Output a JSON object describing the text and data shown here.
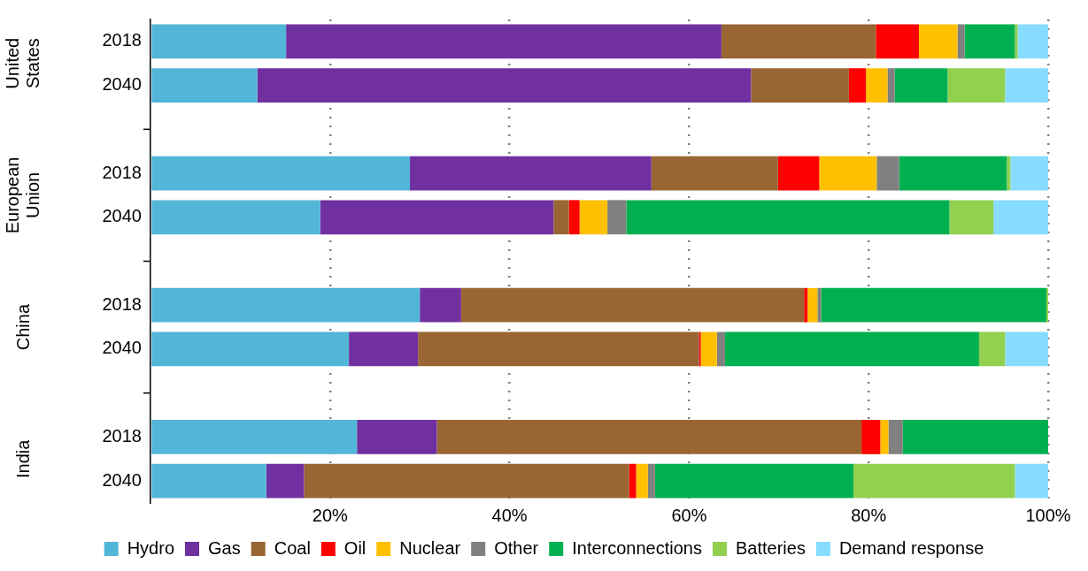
{
  "chart_data": {
    "type": "bar",
    "orientation": "horizontal",
    "stacked": true,
    "categories": [
      "2018",
      "2040",
      null,
      "2018",
      "2040",
      null,
      "2018",
      "2040",
      null,
      "2018",
      "2040"
    ],
    "annotations": [
      "United States",
      "European Union",
      "China",
      "India"
    ],
    "series": [
      {
        "name": "Hydro",
        "color": "#52b6d8",
        "values": [
          15.1,
          11.9,
          null,
          28.9,
          18.9,
          null,
          30.0,
          22.1,
          null,
          23.0,
          12.9
        ]
      },
      {
        "name": "Gas",
        "color": "#7030a0",
        "values": [
          48.5,
          55.0,
          null,
          26.9,
          26.0,
          null,
          4.6,
          7.7,
          null,
          8.9,
          4.2
        ]
      },
      {
        "name": "Coal",
        "color": "#996633",
        "values": [
          17.2,
          10.9,
          null,
          14.1,
          1.7,
          null,
          38.2,
          31.3,
          null,
          47.3,
          36.2
        ]
      },
      {
        "name": "Oil",
        "color": "#ff0000",
        "values": [
          4.8,
          1.9,
          null,
          4.6,
          1.2,
          null,
          0.4,
          0.2,
          null,
          2.1,
          0.8
        ]
      },
      {
        "name": "Nuclear",
        "color": "#ffc000",
        "values": [
          4.3,
          2.4,
          null,
          6.4,
          3.1,
          null,
          1.1,
          1.8,
          null,
          0.9,
          1.3
        ]
      },
      {
        "name": "Other",
        "color": "#808080",
        "values": [
          0.8,
          0.8,
          null,
          2.5,
          2.1,
          null,
          0.4,
          0.9,
          null,
          1.6,
          0.8
        ]
      },
      {
        "name": "Interconnections",
        "color": "#00b050",
        "values": [
          5.6,
          5.9,
          null,
          12.0,
          36.0,
          null,
          25.1,
          28.3,
          null,
          16.2,
          22.1
        ]
      },
      {
        "name": "Batteries",
        "color": "#92d050",
        "values": [
          0.3,
          6.4,
          null,
          0.4,
          4.9,
          null,
          0.2,
          2.9,
          null,
          0,
          18.0
        ]
      },
      {
        "name": "Demand response",
        "color": "#87dcff",
        "values": [
          3.4,
          4.8,
          null,
          4.2,
          6.1,
          null,
          0,
          4.8,
          null,
          0,
          3.7
        ]
      }
    ],
    "xlim": [
      0,
      100
    ],
    "xticks": [
      {
        "value": 0,
        "label": null
      },
      {
        "value": 20,
        "label": "20%"
      },
      {
        "value": 40,
        "label": "40%"
      },
      {
        "value": 60,
        "label": "60%"
      },
      {
        "value": 80,
        "label": "80%"
      },
      {
        "value": 100,
        "label": "100%"
      }
    ],
    "grid": "x",
    "legend": "bottom"
  }
}
